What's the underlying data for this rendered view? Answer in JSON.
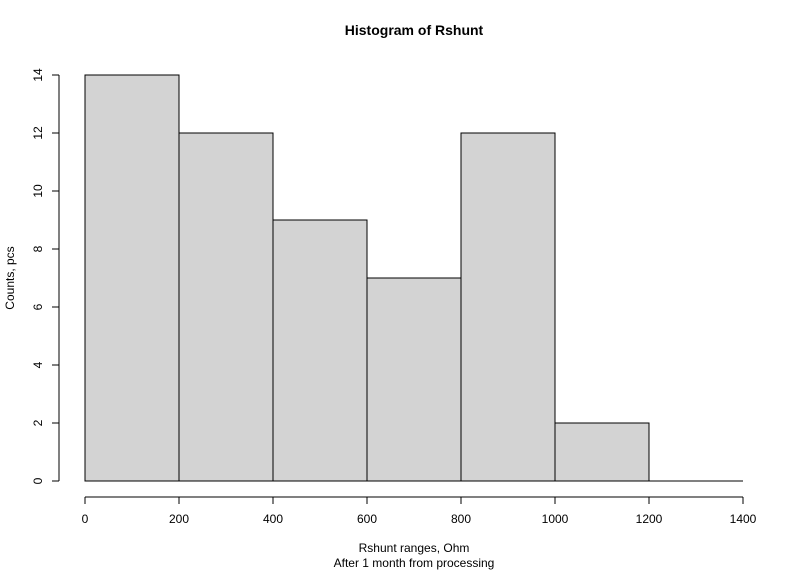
{
  "chart_data": {
    "type": "bar",
    "title": "Histogram of Rshunt",
    "xlabel": "Rshunt ranges, Ohm",
    "subtitle": "After 1 month from processing",
    "ylabel": "Counts, pcs",
    "bins": [
      {
        "from": 0,
        "to": 200,
        "value": 14
      },
      {
        "from": 200,
        "to": 400,
        "value": 12
      },
      {
        "from": 400,
        "to": 600,
        "value": 9
      },
      {
        "from": 600,
        "to": 800,
        "value": 7
      },
      {
        "from": 800,
        "to": 1000,
        "value": 12
      },
      {
        "from": 1000,
        "to": 1200,
        "value": 2
      },
      {
        "from": 1200,
        "to": 1400,
        "value": 0
      }
    ],
    "xlim": [
      0,
      1400
    ],
    "ylim": [
      0,
      14
    ],
    "x_ticks": [
      0,
      200,
      400,
      600,
      800,
      1000,
      1200,
      1400
    ],
    "y_ticks": [
      0,
      2,
      4,
      6,
      8,
      10,
      12,
      14
    ],
    "grid": false,
    "colors": {
      "bar_fill": "#d3d3d3",
      "bar_stroke": "#000000"
    }
  }
}
